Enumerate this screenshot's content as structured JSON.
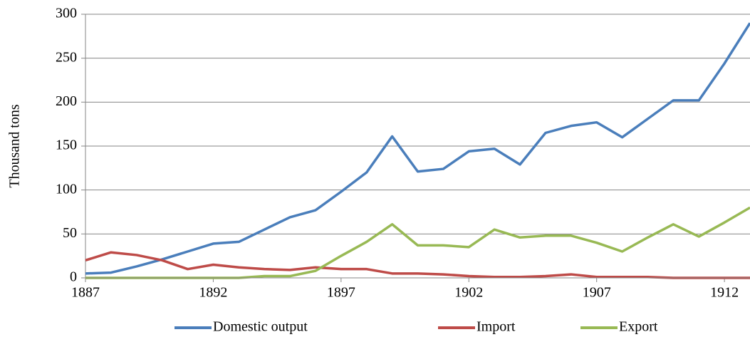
{
  "chart_data": {
    "type": "line",
    "y_label": "Thousand tons",
    "x": [
      1887,
      1888,
      1889,
      1890,
      1891,
      1892,
      1893,
      1894,
      1895,
      1896,
      1897,
      1898,
      1899,
      1900,
      1901,
      1902,
      1903,
      1904,
      1905,
      1906,
      1907,
      1908,
      1909,
      1910,
      1911,
      1912,
      1913
    ],
    "series": [
      {
        "name": "Domestic output",
        "color": "#4a7ebb",
        "values": [
          5,
          6,
          13,
          21,
          30,
          39,
          41,
          55,
          69,
          77,
          98,
          120,
          161,
          121,
          124,
          144,
          147,
          129,
          165,
          173,
          177,
          160,
          181,
          202,
          202,
          244,
          290
        ]
      },
      {
        "name": "Import",
        "color": "#be4b48",
        "values": [
          20,
          29,
          26,
          20,
          10,
          15,
          12,
          10,
          9,
          12,
          10,
          10,
          5,
          5,
          4,
          2,
          1,
          1,
          2,
          4,
          1,
          1,
          1,
          0,
          0,
          0,
          0
        ]
      },
      {
        "name": "Export",
        "color": "#98b954",
        "values": [
          0,
          0,
          0,
          0,
          0,
          0,
          0,
          2,
          2,
          8,
          25,
          41,
          61,
          37,
          37,
          35,
          55,
          46,
          48,
          48,
          40,
          30,
          46,
          61,
          47,
          63,
          80
        ]
      }
    ],
    "xlim": [
      1887,
      1913
    ],
    "xticks": [
      1887,
      1892,
      1897,
      1902,
      1907,
      1912
    ],
    "ylim": [
      0,
      300
    ],
    "yticks": [
      0,
      50,
      100,
      150,
      200,
      250,
      300
    ],
    "grid": true,
    "legend": "bottom"
  }
}
